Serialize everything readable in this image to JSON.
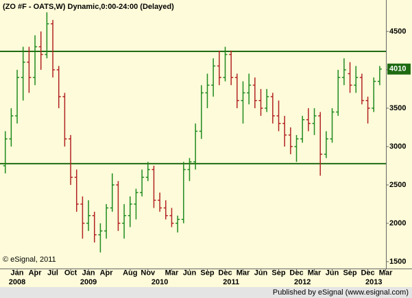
{
  "chart_data": {
    "type": "ohlc",
    "title": "(ZO #F - OATS,W) Dynamic,0:00-24:00 (Delayed)",
    "copyright": "© eSignal, 2011",
    "publisher": "Published by eSignal (www.esignal.com)",
    "background": "#fdfbd9",
    "up_color": "#1e8a1e",
    "down_color": "#b22222",
    "level_color": "#1f6b12",
    "levels": [
      4240,
      2777
    ],
    "last_price": 4010,
    "last_price_color": "#1f6b12",
    "ylim": [
      1410,
      4910
    ],
    "yticks": [
      1500,
      2000,
      2500,
      3000,
      3500,
      4000,
      4500
    ],
    "categories": [
      "2007-11",
      "2007-12",
      "2008-01",
      "2008-02",
      "2008-03",
      "2008-04",
      "2008-05",
      "2008-06",
      "2008-07",
      "2008-08",
      "2008-09",
      "2008-10",
      "2008-11",
      "2008-12",
      "2009-01",
      "2009-02",
      "2009-03",
      "2009-04",
      "2009-05",
      "2009-06",
      "2009-07",
      "2009-08",
      "2009-09",
      "2009-10",
      "2009-11",
      "2009-12",
      "2010-01",
      "2010-02",
      "2010-03",
      "2010-04",
      "2010-05",
      "2010-06",
      "2010-07",
      "2010-08",
      "2010-09",
      "2010-10",
      "2010-11",
      "2010-12",
      "2011-01",
      "2011-02",
      "2011-03",
      "2011-04",
      "2011-05",
      "2011-06",
      "2011-07",
      "2011-08",
      "2011-09",
      "2011-10",
      "2011-11",
      "2011-12",
      "2012-01",
      "2012-02",
      "2012-03",
      "2012-04",
      "2012-05",
      "2012-06",
      "2012-07",
      "2012-08",
      "2012-09",
      "2012-10",
      "2012-11",
      "2012-12",
      "2013-01",
      "2013-02"
    ],
    "open": [
      2750,
      3100,
      3400,
      3900,
      4100,
      3900,
      4300,
      4200,
      4600,
      4000,
      3650,
      3100,
      2600,
      2250,
      2000,
      2100,
      1850,
      1900,
      2200,
      2500,
      2000,
      2100,
      2250,
      2400,
      2600,
      2700,
      2300,
      2200,
      2100,
      2000,
      2050,
      2700,
      2800,
      3200,
      3700,
      3800,
      4050,
      3900,
      4200,
      3900,
      3600,
      3700,
      3800,
      3600,
      3500,
      3650,
      3400,
      3300,
      3150,
      3000,
      3100,
      3350,
      3300,
      3400,
      2900,
      3100,
      3450,
      3900,
      3950,
      3800,
      3900,
      3600,
      3500,
      3850
    ],
    "high": [
      3200,
      3500,
      4000,
      4300,
      4300,
      4450,
      4500,
      4750,
      4650,
      4050,
      3700,
      3150,
      2700,
      2350,
      2300,
      2150,
      2000,
      2250,
      2650,
      2550,
      2250,
      2350,
      2450,
      2700,
      2800,
      2750,
      2400,
      2300,
      2200,
      2100,
      2800,
      2850,
      3300,
      3800,
      3950,
      4150,
      4250,
      4300,
      4250,
      3950,
      3850,
      3950,
      3900,
      3750,
      3750,
      3700,
      3600,
      3400,
      3250,
      3150,
      3400,
      3500,
      3500,
      3450,
      3200,
      3500,
      4000,
      4150,
      4100,
      4050,
      3950,
      3650,
      3900,
      4050
    ],
    "low": [
      2650,
      3000,
      3300,
      3600,
      3700,
      3800,
      4000,
      4150,
      3900,
      3500,
      3000,
      2500,
      2150,
      1800,
      1900,
      1750,
      1620,
      1800,
      2150,
      1900,
      1800,
      1950,
      2050,
      2350,
      2550,
      2200,
      2150,
      2050,
      1950,
      1880,
      2000,
      2550,
      2700,
      3100,
      3500,
      3650,
      3800,
      3850,
      3800,
      3500,
      3300,
      3550,
      3500,
      3400,
      3450,
      3300,
      3200,
      3000,
      2900,
      2800,
      3050,
      3200,
      3150,
      2620,
      2850,
      3050,
      3400,
      3800,
      3700,
      3700,
      3550,
      3300,
      3450,
      3800
    ],
    "close": [
      3100,
      3400,
      3900,
      4100,
      3900,
      4300,
      4200,
      4600,
      4000,
      3650,
      3100,
      2600,
      2250,
      2000,
      2100,
      1850,
      1900,
      2200,
      2500,
      2000,
      2100,
      2250,
      2400,
      2600,
      2700,
      2300,
      2200,
      2100,
      2000,
      2050,
      2700,
      2800,
      3200,
      3700,
      3800,
      4050,
      3900,
      4200,
      3900,
      3600,
      3700,
      3800,
      3600,
      3500,
      3650,
      3400,
      3300,
      3150,
      3000,
      3100,
      3350,
      3300,
      3400,
      2900,
      3100,
      3450,
      3900,
      4000,
      3800,
      3900,
      3600,
      3500,
      3850,
      4010
    ],
    "xticks": [
      {
        "value": "2008-01",
        "label": "Jan"
      },
      {
        "value": "2008-04",
        "label": "Apr"
      },
      {
        "value": "2008-07",
        "label": "Jul"
      },
      {
        "value": "2008-10",
        "label": "Oct"
      },
      {
        "value": "2009-01",
        "label": "Jan"
      },
      {
        "value": "2009-04",
        "label": "Apr"
      },
      {
        "value": "2009-08",
        "label": "Aug"
      },
      {
        "value": "2009-11",
        "label": "Nov"
      },
      {
        "value": "2010-03",
        "label": "Mar"
      },
      {
        "value": "2010-06",
        "label": "Jun"
      },
      {
        "value": "2010-09",
        "label": "Sep"
      },
      {
        "value": "2010-12",
        "label": "Dec"
      },
      {
        "value": "2011-03",
        "label": "Mar"
      },
      {
        "value": "2011-06",
        "label": "Jun"
      },
      {
        "value": "2011-09",
        "label": "Sep"
      },
      {
        "value": "2011-12",
        "label": "Dec"
      },
      {
        "value": "2012-03",
        "label": "Mar"
      },
      {
        "value": "2012-06",
        "label": "Jun"
      },
      {
        "value": "2012-09",
        "label": "Sep"
      },
      {
        "value": "2012-12",
        "label": "Dec"
      },
      {
        "value": "2013-03",
        "label": "Mar"
      }
    ],
    "year_labels": [
      {
        "value": "2008-01",
        "label": "2008"
      },
      {
        "value": "2009-01",
        "label": "2009"
      },
      {
        "value": "2010-01",
        "label": "2010"
      },
      {
        "value": "2011-01",
        "label": "2011"
      },
      {
        "value": "2012-01",
        "label": "2012"
      },
      {
        "value": "2013-01",
        "label": "2013"
      }
    ]
  }
}
